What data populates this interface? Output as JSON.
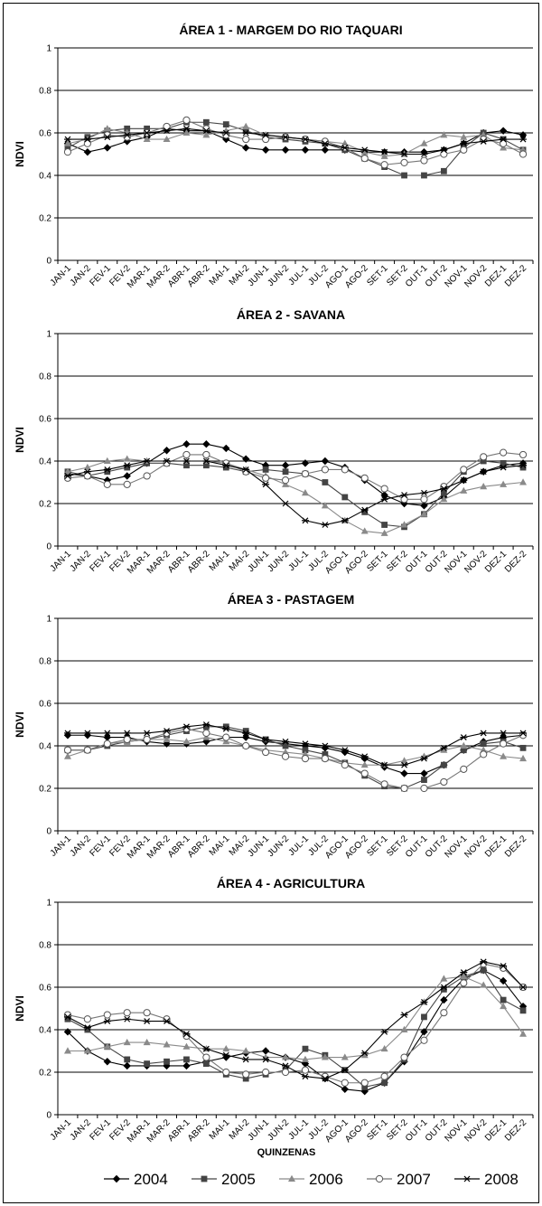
{
  "chart_data": {
    "type": "line",
    "categories": [
      "JAN-1",
      "JAN-2",
      "FEV-1",
      "FEV-2",
      "MAR-1",
      "MAR-2",
      "ABR-1",
      "ABR-2",
      "MAI-1",
      "MAI-2",
      "JUN-1",
      "JUN-2",
      "JUL-1",
      "JUL-2",
      "AGO-1",
      "AGO-2",
      "SET-1",
      "SET-2",
      "OUT-1",
      "OUT-2",
      "NOV-1",
      "NOV-2",
      "DEZ-1",
      "DEZ-2"
    ],
    "ylim": [
      0,
      1
    ],
    "yticks": [
      "0",
      "0.2",
      "0.4",
      "0.6",
      "0.8",
      "1"
    ],
    "xlabel": "QUINZENAS",
    "legend": [
      "2004",
      "2005",
      "2006",
      "2007",
      "2008"
    ],
    "panels": [
      {
        "title": "ÁREA 1 - MARGEM DO RIO TAQUARI",
        "ylabel": "NDVI",
        "series": [
          {
            "name": "2004",
            "values": [
              0.55,
              0.51,
              0.53,
              0.56,
              0.58,
              0.62,
              0.61,
              0.61,
              0.57,
              0.53,
              0.52,
              0.52,
              0.52,
              0.52,
              0.52,
              0.51,
              0.51,
              0.51,
              0.51,
              0.52,
              0.55,
              0.6,
              0.61,
              0.59
            ]
          },
          {
            "name": "2005",
            "values": [
              0.53,
              0.58,
              0.61,
              0.62,
              0.62,
              0.62,
              0.65,
              0.65,
              0.64,
              0.61,
              0.58,
              0.57,
              0.56,
              0.55,
              0.52,
              0.48,
              0.44,
              0.4,
              0.4,
              0.42,
              0.53,
              0.6,
              0.57,
              0.52
            ]
          },
          {
            "name": "2006",
            "values": [
              0.55,
              0.57,
              0.62,
              0.6,
              0.57,
              0.57,
              0.6,
              0.59,
              0.61,
              0.63,
              0.59,
              0.58,
              0.57,
              0.56,
              0.55,
              0.51,
              0.49,
              0.5,
              0.55,
              0.59,
              0.58,
              0.59,
              0.53,
              0.52
            ]
          },
          {
            "name": "2007",
            "values": [
              0.51,
              0.55,
              0.59,
              0.58,
              0.6,
              0.63,
              0.66,
              0.62,
              0.59,
              0.57,
              0.57,
              0.58,
              0.57,
              0.56,
              0.53,
              0.48,
              0.45,
              0.46,
              0.47,
              0.5,
              0.52,
              0.57,
              0.55,
              0.5
            ]
          },
          {
            "name": "2008",
            "values": [
              0.57,
              0.57,
              0.58,
              0.59,
              0.6,
              0.61,
              0.62,
              0.61,
              0.6,
              0.6,
              0.59,
              0.58,
              0.57,
              0.55,
              0.53,
              0.52,
              0.51,
              0.5,
              0.5,
              0.52,
              0.55,
              0.56,
              0.57,
              0.57
            ]
          }
        ]
      },
      {
        "title": "ÁREA 2 - SAVANA",
        "ylabel": "NDVI",
        "series": [
          {
            "name": "2004",
            "values": [
              0.34,
              0.33,
              0.31,
              0.33,
              0.39,
              0.45,
              0.48,
              0.48,
              0.46,
              0.41,
              0.38,
              0.38,
              0.39,
              0.4,
              0.37,
              0.31,
              0.24,
              0.2,
              0.19,
              0.23,
              0.31,
              0.35,
              0.38,
              0.39
            ]
          },
          {
            "name": "2005",
            "values": [
              0.35,
              0.33,
              0.35,
              0.37,
              0.39,
              0.39,
              0.38,
              0.38,
              0.37,
              0.35,
              0.36,
              0.35,
              0.34,
              0.3,
              0.23,
              0.16,
              0.1,
              0.09,
              0.15,
              0.25,
              0.35,
              0.4,
              0.39,
              0.37
            ]
          },
          {
            "name": "2006",
            "values": [
              0.35,
              0.37,
              0.4,
              0.41,
              0.4,
              0.4,
              0.4,
              0.4,
              0.39,
              0.36,
              0.33,
              0.29,
              0.25,
              0.19,
              0.12,
              0.07,
              0.06,
              0.1,
              0.15,
              0.22,
              0.26,
              0.28,
              0.29,
              0.3
            ]
          },
          {
            "name": "2007",
            "values": [
              0.32,
              0.33,
              0.29,
              0.29,
              0.33,
              0.39,
              0.43,
              0.43,
              0.39,
              0.35,
              0.32,
              0.31,
              0.34,
              0.36,
              0.36,
              0.32,
              0.27,
              0.22,
              0.22,
              0.28,
              0.36,
              0.42,
              0.44,
              0.43
            ]
          },
          {
            "name": "2008",
            "values": [
              0.33,
              0.35,
              0.36,
              0.38,
              0.4,
              0.4,
              0.4,
              0.4,
              0.38,
              0.36,
              0.29,
              0.2,
              0.12,
              0.1,
              0.12,
              0.17,
              0.22,
              0.24,
              0.25,
              0.27,
              0.31,
              0.35,
              0.37,
              0.38
            ]
          }
        ]
      },
      {
        "title": "ÁREA 3 - PASTAGEM",
        "ylabel": "NDVI",
        "series": [
          {
            "name": "2004",
            "values": [
              0.45,
              0.45,
              0.44,
              0.44,
              0.42,
              0.41,
              0.41,
              0.42,
              0.44,
              0.44,
              0.42,
              0.41,
              0.4,
              0.39,
              0.37,
              0.34,
              0.3,
              0.27,
              0.27,
              0.31,
              0.38,
              0.42,
              0.44,
              0.45
            ]
          },
          {
            "name": "2005",
            "values": [
              0.38,
              0.38,
              0.4,
              0.42,
              0.43,
              0.45,
              0.47,
              0.49,
              0.49,
              0.47,
              0.43,
              0.4,
              0.38,
              0.36,
              0.32,
              0.26,
              0.21,
              0.2,
              0.24,
              0.31,
              0.38,
              0.41,
              0.42,
              0.39
            ]
          },
          {
            "name": "2006",
            "values": [
              0.35,
              0.38,
              0.41,
              0.42,
              0.43,
              0.43,
              0.42,
              0.44,
              0.42,
              0.4,
              0.38,
              0.37,
              0.36,
              0.34,
              0.32,
              0.31,
              0.31,
              0.33,
              0.35,
              0.38,
              0.4,
              0.38,
              0.35,
              0.34
            ]
          },
          {
            "name": "2007",
            "values": [
              0.38,
              0.38,
              0.41,
              0.43,
              0.43,
              0.46,
              0.48,
              0.46,
              0.44,
              0.4,
              0.37,
              0.35,
              0.34,
              0.34,
              0.31,
              0.27,
              0.22,
              0.2,
              0.2,
              0.23,
              0.29,
              0.36,
              0.41,
              0.45
            ]
          },
          {
            "name": "2008",
            "values": [
              0.46,
              0.46,
              0.46,
              0.46,
              0.46,
              0.47,
              0.49,
              0.5,
              0.48,
              0.46,
              0.43,
              0.42,
              0.41,
              0.4,
              0.38,
              0.35,
              0.31,
              0.31,
              0.34,
              0.39,
              0.44,
              0.46,
              0.46,
              0.46
            ]
          }
        ]
      },
      {
        "title": "ÁREA 4 - AGRICULTURA",
        "ylabel": "NDVI",
        "series": [
          {
            "name": "2004",
            "values": [
              0.39,
              0.3,
              0.25,
              0.23,
              0.23,
              0.23,
              0.23,
              0.25,
              0.27,
              0.29,
              0.3,
              0.27,
              0.24,
              0.17,
              0.12,
              0.11,
              0.15,
              0.25,
              0.39,
              0.54,
              0.64,
              0.68,
              0.63,
              0.51
            ]
          },
          {
            "name": "2005",
            "values": [
              0.45,
              0.4,
              0.32,
              0.26,
              0.24,
              0.25,
              0.26,
              0.24,
              0.19,
              0.17,
              0.19,
              0.21,
              0.31,
              0.28,
              0.21,
              0.13,
              0.15,
              0.26,
              0.46,
              0.59,
              0.65,
              0.68,
              0.54,
              0.49
            ]
          },
          {
            "name": "2006",
            "values": [
              0.3,
              0.3,
              0.32,
              0.34,
              0.34,
              0.33,
              0.32,
              0.31,
              0.31,
              0.3,
              0.27,
              0.27,
              0.26,
              0.27,
              0.27,
              0.28,
              0.31,
              0.4,
              0.53,
              0.64,
              0.65,
              0.61,
              0.51,
              0.38
            ]
          },
          {
            "name": "2007",
            "values": [
              0.47,
              0.45,
              0.47,
              0.48,
              0.48,
              0.45,
              0.37,
              0.27,
              0.2,
              0.19,
              0.2,
              0.2,
              0.21,
              0.18,
              0.15,
              0.15,
              0.18,
              0.27,
              0.35,
              0.48,
              0.62,
              0.71,
              0.69,
              0.6
            ]
          },
          {
            "name": "2008",
            "values": [
              0.46,
              0.41,
              0.44,
              0.45,
              0.44,
              0.44,
              0.38,
              0.31,
              0.28,
              0.26,
              0.26,
              0.23,
              0.18,
              0.17,
              0.21,
              0.29,
              0.39,
              0.47,
              0.53,
              0.6,
              0.67,
              0.72,
              0.7,
              0.6
            ]
          }
        ]
      }
    ]
  }
}
